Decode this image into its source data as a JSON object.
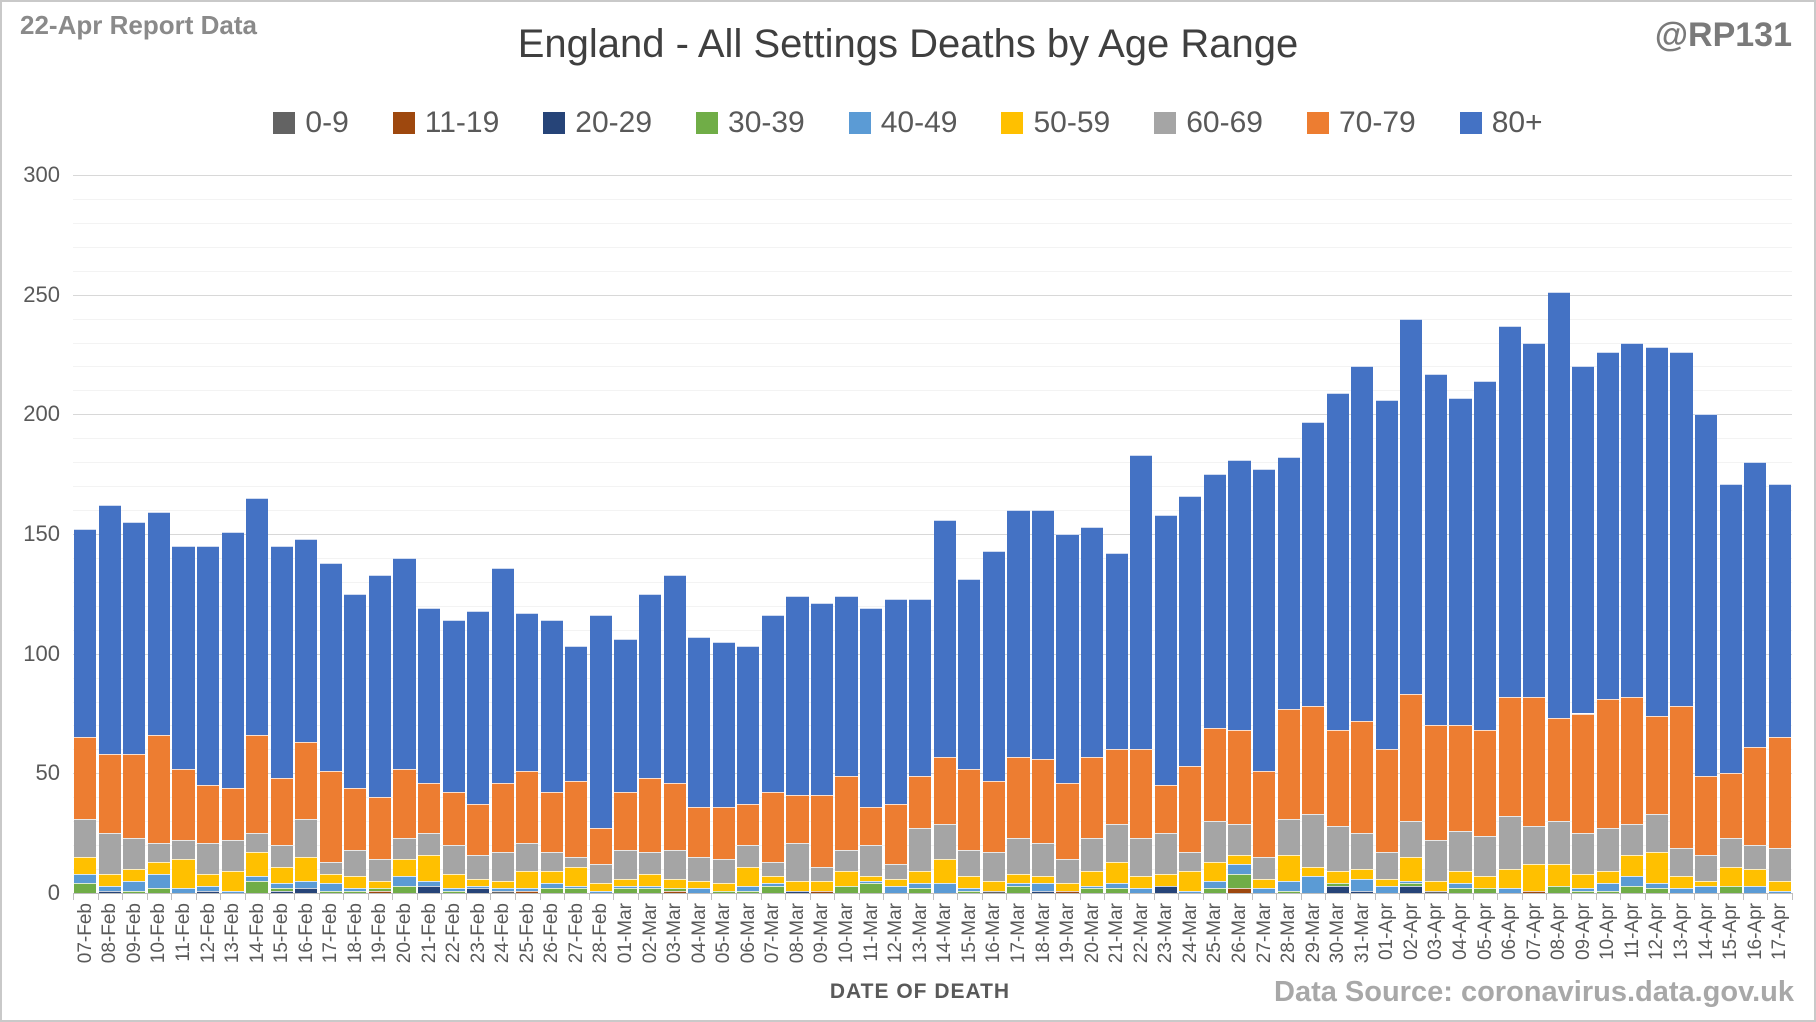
{
  "header": {
    "report_date": "22-Apr Report Data",
    "title": "England - All Settings Deaths by Age Range",
    "handle": "@RP131"
  },
  "footer": {
    "source": "Data Source: coronavirus.data.gov.uk"
  },
  "chart_data": {
    "type": "bar",
    "subtype": "stacked",
    "title": "England - All Settings Deaths by Age Range",
    "xlabel": "DATE OF DEATH",
    "ylabel": "",
    "ylim": [
      0,
      300
    ],
    "y_major_step": 50,
    "y_minor_step": 10,
    "grid": true,
    "legend_position": "top",
    "categories": [
      "07-Feb",
      "08-Feb",
      "09-Feb",
      "10-Feb",
      "11-Feb",
      "12-Feb",
      "13-Feb",
      "14-Feb",
      "15-Feb",
      "16-Feb",
      "17-Feb",
      "18-Feb",
      "19-Feb",
      "20-Feb",
      "21-Feb",
      "22-Feb",
      "23-Feb",
      "24-Feb",
      "25-Feb",
      "26-Feb",
      "27-Feb",
      "28-Feb",
      "01-Mar",
      "02-Mar",
      "03-Mar",
      "04-Mar",
      "05-Mar",
      "06-Mar",
      "07-Mar",
      "08-Mar",
      "09-Mar",
      "10-Mar",
      "11-Mar",
      "12-Mar",
      "13-Mar",
      "14-Mar",
      "15-Mar",
      "16-Mar",
      "17-Mar",
      "18-Mar",
      "19-Mar",
      "20-Mar",
      "21-Mar",
      "22-Mar",
      "23-Mar",
      "24-Mar",
      "25-Mar",
      "26-Mar",
      "27-Mar",
      "28-Mar",
      "29-Mar",
      "30-Mar",
      "31-Mar",
      "01-Apr",
      "02-Apr",
      "03-Apr",
      "04-Apr",
      "05-Apr",
      "06-Apr",
      "07-Apr",
      "08-Apr",
      "09-Apr",
      "10-Apr",
      "11-Apr",
      "12-Apr",
      "13-Apr",
      "14-Apr",
      "15-Apr",
      "16-Apr",
      "17-Apr"
    ],
    "series": [
      {
        "name": "0-9",
        "color": "#636363",
        "values": [
          0,
          0,
          0,
          0,
          0,
          0,
          0,
          0,
          0,
          0,
          0,
          0,
          0,
          0,
          0,
          0,
          0,
          1,
          0,
          0,
          0,
          0,
          0,
          0,
          0,
          0,
          0,
          0,
          0,
          0,
          0,
          0,
          0,
          0,
          0,
          0,
          0,
          1,
          0,
          0,
          0,
          0,
          0,
          0,
          0,
          0,
          0,
          0,
          0,
          0,
          0,
          0,
          0,
          0,
          0,
          1,
          0,
          0,
          0,
          0,
          0,
          0,
          0,
          0,
          0,
          0,
          0,
          0,
          0,
          0
        ]
      },
      {
        "name": "11-19",
        "color": "#9e480e",
        "values": [
          0,
          0,
          0,
          0,
          0,
          0,
          0,
          0,
          0,
          0,
          0,
          0,
          1,
          0,
          0,
          0,
          0,
          0,
          1,
          0,
          0,
          0,
          0,
          0,
          1,
          0,
          0,
          0,
          0,
          0,
          1,
          0,
          0,
          0,
          0,
          0,
          0,
          0,
          0,
          0,
          1,
          0,
          0,
          0,
          0,
          0,
          0,
          2,
          0,
          0,
          0,
          0,
          0,
          0,
          0,
          0,
          0,
          0,
          0,
          1,
          0,
          0,
          0,
          0,
          0,
          0,
          0,
          0,
          0,
          0
        ]
      },
      {
        "name": "20-29",
        "color": "#264478",
        "values": [
          0,
          1,
          0,
          0,
          0,
          1,
          0,
          0,
          1,
          2,
          0,
          0,
          0,
          0,
          3,
          0,
          2,
          0,
          0,
          0,
          0,
          0,
          0,
          0,
          0,
          0,
          0,
          0,
          0,
          1,
          0,
          0,
          0,
          0,
          0,
          0,
          0,
          0,
          0,
          1,
          0,
          0,
          0,
          0,
          3,
          0,
          0,
          0,
          0,
          0,
          0,
          3,
          1,
          0,
          3,
          0,
          0,
          0,
          0,
          0,
          0,
          0,
          0,
          0,
          0,
          0,
          0,
          0,
          0,
          0
        ]
      },
      {
        "name": "30-39",
        "color": "#70ad47",
        "values": [
          4,
          0,
          1,
          2,
          0,
          0,
          0,
          5,
          1,
          0,
          1,
          1,
          1,
          3,
          0,
          1,
          0,
          0,
          0,
          2,
          2,
          0,
          2,
          2,
          1,
          0,
          1,
          1,
          3,
          0,
          0,
          3,
          4,
          0,
          2,
          0,
          1,
          0,
          3,
          0,
          0,
          2,
          2,
          0,
          0,
          0,
          2,
          6,
          0,
          1,
          0,
          1,
          0,
          0,
          1,
          0,
          2,
          2,
          0,
          0,
          3,
          1,
          1,
          3,
          2,
          0,
          0,
          3,
          0,
          0
        ]
      },
      {
        "name": "40-49",
        "color": "#5b9bd5",
        "values": [
          4,
          2,
          4,
          6,
          2,
          2,
          1,
          2,
          2,
          3,
          3,
          1,
          0,
          4,
          2,
          1,
          1,
          1,
          1,
          2,
          1,
          1,
          1,
          1,
          0,
          2,
          0,
          2,
          1,
          0,
          0,
          0,
          1,
          3,
          2,
          4,
          1,
          0,
          1,
          3,
          0,
          1,
          2,
          2,
          0,
          1,
          3,
          4,
          2,
          4,
          7,
          0,
          5,
          3,
          1,
          0,
          2,
          0,
          2,
          0,
          0,
          1,
          3,
          4,
          2,
          2,
          3,
          0,
          3,
          1
        ]
      },
      {
        "name": "50-59",
        "color": "#ffc000",
        "values": [
          7,
          5,
          5,
          5,
          12,
          5,
          8,
          10,
          7,
          10,
          4,
          5,
          3,
          7,
          11,
          6,
          3,
          3,
          7,
          5,
          8,
          3,
          3,
          5,
          4,
          3,
          3,
          8,
          3,
          4,
          4,
          6,
          2,
          3,
          5,
          10,
          5,
          4,
          4,
          3,
          3,
          6,
          9,
          5,
          5,
          8,
          8,
          4,
          4,
          11,
          4,
          5,
          4,
          3,
          10,
          4,
          5,
          5,
          8,
          11,
          9,
          6,
          5,
          9,
          13,
          5,
          2,
          8,
          7,
          4
        ]
      },
      {
        "name": "60-69",
        "color": "#a5a5a5",
        "values": [
          16,
          17,
          13,
          8,
          8,
          13,
          13,
          8,
          9,
          16,
          5,
          11,
          9,
          9,
          9,
          12,
          10,
          12,
          12,
          8,
          4,
          8,
          12,
          9,
          12,
          10,
          10,
          9,
          6,
          16,
          6,
          9,
          13,
          6,
          18,
          15,
          11,
          12,
          15,
          14,
          10,
          14,
          16,
          16,
          17,
          8,
          17,
          13,
          9,
          15,
          22,
          19,
          15,
          11,
          15,
          17,
          17,
          17,
          22,
          16,
          18,
          17,
          18,
          13,
          16,
          12,
          11,
          12,
          10,
          14
        ]
      },
      {
        "name": "70-79",
        "color": "#ed7d31",
        "values": [
          34,
          33,
          35,
          45,
          30,
          24,
          22,
          41,
          28,
          32,
          38,
          26,
          26,
          29,
          21,
          22,
          21,
          29,
          30,
          25,
          32,
          15,
          24,
          31,
          28,
          21,
          22,
          17,
          29,
          20,
          30,
          31,
          16,
          25,
          22,
          28,
          34,
          30,
          34,
          35,
          32,
          34,
          31,
          37,
          20,
          36,
          39,
          39,
          36,
          46,
          45,
          40,
          47,
          43,
          53,
          48,
          44,
          44,
          50,
          54,
          43,
          50,
          54,
          53,
          41,
          59,
          33,
          27,
          41,
          46
        ]
      },
      {
        "name": "80+",
        "color": "#4472c4",
        "values": [
          87,
          104,
          97,
          93,
          93,
          100,
          107,
          99,
          97,
          85,
          87,
          81,
          93,
          88,
          73,
          72,
          81,
          90,
          66,
          72,
          56,
          89,
          64,
          77,
          87,
          71,
          69,
          66,
          74,
          83,
          80,
          75,
          83,
          86,
          74,
          99,
          79,
          96,
          103,
          104,
          104,
          96,
          82,
          123,
          113,
          113,
          106,
          113,
          126,
          105,
          119,
          141,
          148,
          146,
          157,
          147,
          137,
          146,
          155,
          148,
          178,
          145,
          145,
          148,
          154,
          148,
          151,
          121,
          119,
          106
        ]
      }
    ]
  }
}
